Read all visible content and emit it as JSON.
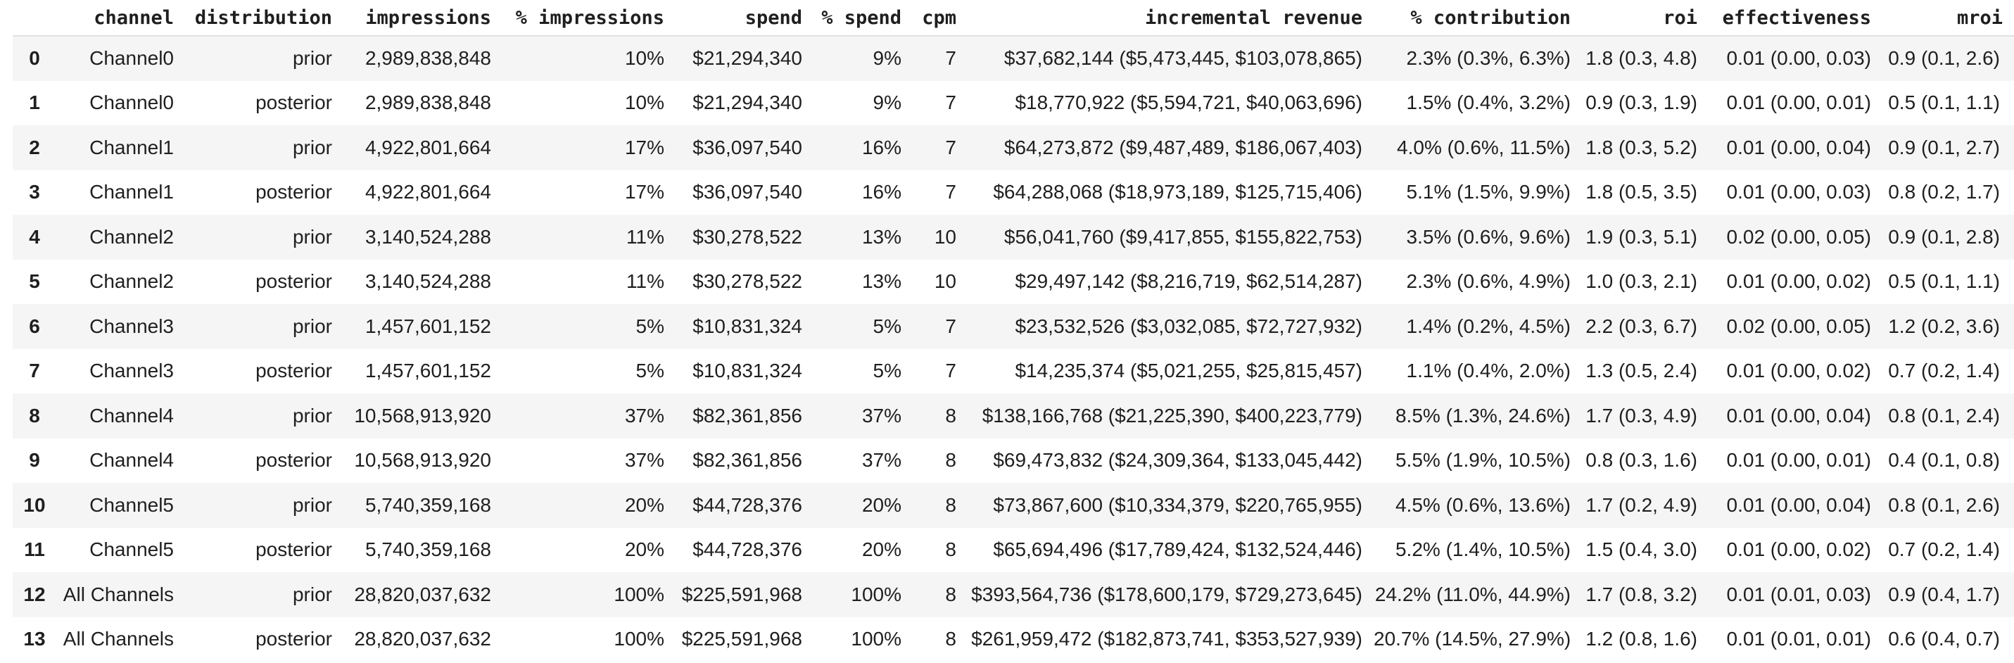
{
  "colors": {
    "background": "#ffffff",
    "row_stripe": "#f5f5f5",
    "header_border": "#e1e1e1",
    "text": "#1f1f1f"
  },
  "table": {
    "index_header": "",
    "columns": [
      "channel",
      "distribution",
      "impressions",
      "% impressions",
      "spend",
      "% spend",
      "cpm",
      "incremental revenue",
      "% contribution",
      "roi",
      "effectiveness",
      "mroi"
    ],
    "column_keys": [
      "channel",
      "distribution",
      "impressions",
      "pct-impressions",
      "spend",
      "pct-spend",
      "cpm",
      "incremental-revenue",
      "pct-contribution",
      "roi",
      "effectiveness",
      "mroi"
    ],
    "rows": [
      [
        "0",
        "Channel0",
        "prior",
        "2,989,838,848",
        "10%",
        "$21,294,340",
        "9%",
        "7",
        "$37,682,144 ($5,473,445, $103,078,865)",
        "2.3% (0.3%, 6.3%)",
        "1.8 (0.3, 4.8)",
        "0.01 (0.00, 0.03)",
        "0.9 (0.1, 2.6)"
      ],
      [
        "1",
        "Channel0",
        "posterior",
        "2,989,838,848",
        "10%",
        "$21,294,340",
        "9%",
        "7",
        "$18,770,922 ($5,594,721, $40,063,696)",
        "1.5% (0.4%, 3.2%)",
        "0.9 (0.3, 1.9)",
        "0.01 (0.00, 0.01)",
        "0.5 (0.1, 1.1)"
      ],
      [
        "2",
        "Channel1",
        "prior",
        "4,922,801,664",
        "17%",
        "$36,097,540",
        "16%",
        "7",
        "$64,273,872 ($9,487,489, $186,067,403)",
        "4.0% (0.6%, 11.5%)",
        "1.8 (0.3, 5.2)",
        "0.01 (0.00, 0.04)",
        "0.9 (0.1, 2.7)"
      ],
      [
        "3",
        "Channel1",
        "posterior",
        "4,922,801,664",
        "17%",
        "$36,097,540",
        "16%",
        "7",
        "$64,288,068 ($18,973,189, $125,715,406)",
        "5.1% (1.5%, 9.9%)",
        "1.8 (0.5, 3.5)",
        "0.01 (0.00, 0.03)",
        "0.8 (0.2, 1.7)"
      ],
      [
        "4",
        "Channel2",
        "prior",
        "3,140,524,288",
        "11%",
        "$30,278,522",
        "13%",
        "10",
        "$56,041,760 ($9,417,855, $155,822,753)",
        "3.5% (0.6%, 9.6%)",
        "1.9 (0.3, 5.1)",
        "0.02 (0.00, 0.05)",
        "0.9 (0.1, 2.8)"
      ],
      [
        "5",
        "Channel2",
        "posterior",
        "3,140,524,288",
        "11%",
        "$30,278,522",
        "13%",
        "10",
        "$29,497,142 ($8,216,719, $62,514,287)",
        "2.3% (0.6%, 4.9%)",
        "1.0 (0.3, 2.1)",
        "0.01 (0.00, 0.02)",
        "0.5 (0.1, 1.1)"
      ],
      [
        "6",
        "Channel3",
        "prior",
        "1,457,601,152",
        "5%",
        "$10,831,324",
        "5%",
        "7",
        "$23,532,526 ($3,032,085, $72,727,932)",
        "1.4% (0.2%, 4.5%)",
        "2.2 (0.3, 6.7)",
        "0.02 (0.00, 0.05)",
        "1.2 (0.2, 3.6)"
      ],
      [
        "7",
        "Channel3",
        "posterior",
        "1,457,601,152",
        "5%",
        "$10,831,324",
        "5%",
        "7",
        "$14,235,374 ($5,021,255, $25,815,457)",
        "1.1% (0.4%, 2.0%)",
        "1.3 (0.5, 2.4)",
        "0.01 (0.00, 0.02)",
        "0.7 (0.2, 1.4)"
      ],
      [
        "8",
        "Channel4",
        "prior",
        "10,568,913,920",
        "37%",
        "$82,361,856",
        "37%",
        "8",
        "$138,166,768 ($21,225,390, $400,223,779)",
        "8.5% (1.3%, 24.6%)",
        "1.7 (0.3, 4.9)",
        "0.01 (0.00, 0.04)",
        "0.8 (0.1, 2.4)"
      ],
      [
        "9",
        "Channel4",
        "posterior",
        "10,568,913,920",
        "37%",
        "$82,361,856",
        "37%",
        "8",
        "$69,473,832 ($24,309,364, $133,045,442)",
        "5.5% (1.9%, 10.5%)",
        "0.8 (0.3, 1.6)",
        "0.01 (0.00, 0.01)",
        "0.4 (0.1, 0.8)"
      ],
      [
        "10",
        "Channel5",
        "prior",
        "5,740,359,168",
        "20%",
        "$44,728,376",
        "20%",
        "8",
        "$73,867,600 ($10,334,379, $220,765,955)",
        "4.5% (0.6%, 13.6%)",
        "1.7 (0.2, 4.9)",
        "0.01 (0.00, 0.04)",
        "0.8 (0.1, 2.6)"
      ],
      [
        "11",
        "Channel5",
        "posterior",
        "5,740,359,168",
        "20%",
        "$44,728,376",
        "20%",
        "8",
        "$65,694,496 ($17,789,424, $132,524,446)",
        "5.2% (1.4%, 10.5%)",
        "1.5 (0.4, 3.0)",
        "0.01 (0.00, 0.02)",
        "0.7 (0.2, 1.4)"
      ],
      [
        "12",
        "All Channels",
        "prior",
        "28,820,037,632",
        "100%",
        "$225,591,968",
        "100%",
        "8",
        "$393,564,736 ($178,600,179, $729,273,645)",
        "24.2% (11.0%, 44.9%)",
        "1.7 (0.8, 3.2)",
        "0.01 (0.01, 0.03)",
        "0.9 (0.4, 1.7)"
      ],
      [
        "13",
        "All Channels",
        "posterior",
        "28,820,037,632",
        "100%",
        "$225,591,968",
        "100%",
        "8",
        "$261,959,472 ($182,873,741, $353,527,939)",
        "20.7% (14.5%, 27.9%)",
        "1.2 (0.8, 1.6)",
        "0.01 (0.01, 0.01)",
        "0.6 (0.4, 0.7)"
      ]
    ]
  }
}
